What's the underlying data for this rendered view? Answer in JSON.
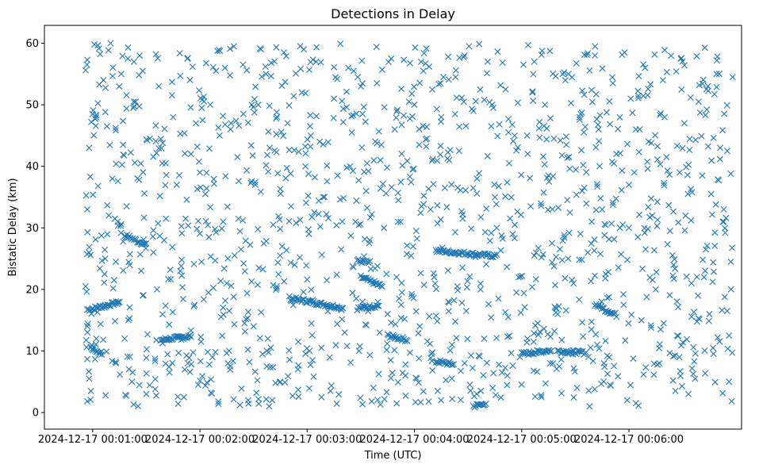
{
  "chart_data": {
    "type": "scatter",
    "title": "Detections in Delay",
    "xlabel": "Time (UTC)",
    "ylabel": "Bistatic Delay (km)",
    "marker": "x",
    "color": "#1f77b4",
    "xlim_seconds": [
      33,
      423
    ],
    "ylim": [
      -2.7,
      62.9
    ],
    "x_ticks": [
      {
        "seconds": 60,
        "label": "2024-12-17 00:01:00"
      },
      {
        "seconds": 120,
        "label": "2024-12-17 00:02:00"
      },
      {
        "seconds": 180,
        "label": "2024-12-17 00:03:00"
      },
      {
        "seconds": 240,
        "label": "2024-12-17 00:04:00"
      },
      {
        "seconds": 300,
        "label": "2024-12-17 00:05:00"
      },
      {
        "seconds": 360,
        "label": "2024-12-17 00:06:00"
      }
    ],
    "y_ticks": [
      {
        "value": 0,
        "label": "0"
      },
      {
        "value": 10,
        "label": "10"
      },
      {
        "value": 20,
        "label": "20"
      },
      {
        "value": 30,
        "label": "30"
      },
      {
        "value": 40,
        "label": "40"
      },
      {
        "value": 50,
        "label": "50"
      },
      {
        "value": 60,
        "label": "60"
      }
    ],
    "series": [
      {
        "name": "Detections",
        "x_range_seconds": [
          56,
          418
        ],
        "y_range": [
          1,
          60
        ],
        "tracks": [
          {
            "t_start": 57,
            "t_end": 75,
            "y_start": 16.7,
            "y_end": 17.9
          },
          {
            "t_start": 59,
            "t_end": 65,
            "y_start": 10.5,
            "y_end": 9.5
          },
          {
            "t_start": 78,
            "t_end": 90,
            "y_start": 28.8,
            "y_end": 27.2
          },
          {
            "t_start": 98,
            "t_end": 115,
            "y_start": 11.8,
            "y_end": 12.4
          },
          {
            "t_start": 170,
            "t_end": 200,
            "y_start": 18.6,
            "y_end": 17.0
          },
          {
            "t_start": 208,
            "t_end": 220,
            "y_start": 16.9,
            "y_end": 17.4
          },
          {
            "t_start": 208,
            "t_end": 215,
            "y_start": 24.7,
            "y_end": 24.3
          },
          {
            "t_start": 210,
            "t_end": 222,
            "y_start": 22.0,
            "y_end": 20.5
          },
          {
            "t_start": 225,
            "t_end": 236,
            "y_start": 12.5,
            "y_end": 11.8
          },
          {
            "t_start": 252,
            "t_end": 286,
            "y_start": 26.3,
            "y_end": 25.4
          },
          {
            "t_start": 252,
            "t_end": 262,
            "y_start": 8.3,
            "y_end": 7.8
          },
          {
            "t_start": 273,
            "t_end": 280,
            "y_start": 1.0,
            "y_end": 1.5
          },
          {
            "t_start": 300,
            "t_end": 316,
            "y_start": 9.5,
            "y_end": 10.1
          },
          {
            "t_start": 320,
            "t_end": 336,
            "y_start": 10.0,
            "y_end": 9.7
          },
          {
            "t_start": 341,
            "t_end": 353,
            "y_start": 17.6,
            "y_end": 15.8
          }
        ],
        "points": [
          [
            57,
            57.3
          ],
          [
            58,
            43.0
          ],
          [
            57,
            33.0
          ],
          [
            58,
            26.0
          ],
          [
            56,
            20.5
          ],
          [
            57,
            14.0
          ],
          [
            58,
            5.5
          ],
          [
            59,
            3.5
          ],
          [
            61,
            59.8
          ],
          [
            62,
            48.3
          ],
          [
            63,
            36.8
          ],
          [
            64,
            23.4
          ],
          [
            62,
            12.0
          ],
          [
            66,
            54.0
          ],
          [
            68,
            46.5
          ],
          [
            67,
            25.0
          ],
          [
            70,
            60.0
          ],
          [
            71,
            38.0
          ],
          [
            72,
            21.5
          ],
          [
            73,
            8.0
          ],
          [
            76,
            55.0
          ],
          [
            77,
            43.5
          ],
          [
            79,
            33.5
          ],
          [
            80,
            15.0
          ],
          [
            82,
            5.0
          ],
          [
            84,
            50.5
          ],
          [
            86,
            37.8
          ],
          [
            88,
            19.0
          ],
          [
            90,
            3.0
          ],
          [
            92,
            44.5
          ],
          [
            94,
            26.0
          ],
          [
            96,
            20.0
          ],
          [
            97,
            53.0
          ],
          [
            99,
            40.5
          ],
          [
            101,
            31.5
          ],
          [
            103,
            6.5
          ],
          [
            105,
            48.0
          ],
          [
            107,
            37.0
          ],
          [
            109,
            23.0
          ],
          [
            111,
            2.5
          ],
          [
            113,
            57.5
          ],
          [
            115,
            42.0
          ],
          [
            117,
            17.5
          ],
          [
            119,
            4.5
          ],
          [
            121,
            49.5
          ],
          [
            123,
            35.5
          ],
          [
            125,
            28.5
          ],
          [
            127,
            9.0
          ],
          [
            129,
            55.5
          ],
          [
            131,
            45.0
          ],
          [
            133,
            31.0
          ],
          [
            135,
            21.0
          ],
          [
            137,
            7.5
          ],
          [
            139,
            59.5
          ],
          [
            141,
            41.5
          ],
          [
            143,
            26.5
          ],
          [
            145,
            14.5
          ],
          [
            147,
            2.0
          ],
          [
            149,
            50.0
          ],
          [
            151,
            37.0
          ],
          [
            153,
            23.5
          ],
          [
            155,
            9.5
          ],
          [
            157,
            55.0
          ],
          [
            159,
            43.0
          ],
          [
            161,
            30.5
          ],
          [
            163,
            20.5
          ],
          [
            165,
            5.0
          ],
          [
            167,
            58.5
          ],
          [
            169,
            47.0
          ],
          [
            171,
            33.5
          ],
          [
            173,
            24.0
          ],
          [
            175,
            11.5
          ],
          [
            177,
            52.0
          ],
          [
            179,
            40.0
          ],
          [
            181,
            29.0
          ],
          [
            183,
            8.5
          ],
          [
            185,
            57.0
          ],
          [
            187,
            44.0
          ],
          [
            189,
            35.0
          ],
          [
            191,
            21.5
          ],
          [
            193,
            3.5
          ],
          [
            195,
            51.0
          ],
          [
            197,
            38.5
          ],
          [
            199,
            26.5
          ],
          [
            201,
            13.0
          ],
          [
            203,
            56.0
          ],
          [
            205,
            45.5
          ],
          [
            207,
            31.0
          ],
          [
            209,
            10.0
          ],
          [
            211,
            48.5
          ],
          [
            213,
            36.0
          ],
          [
            215,
            28.0
          ],
          [
            217,
            4.0
          ],
          [
            219,
            53.5
          ],
          [
            221,
            41.0
          ],
          [
            223,
            30.0
          ],
          [
            225,
            16.0
          ],
          [
            227,
            57.5
          ],
          [
            229,
            46.0
          ],
          [
            231,
            34.5
          ],
          [
            233,
            19.5
          ],
          [
            235,
            6.0
          ],
          [
            237,
            50.5
          ],
          [
            239,
            39.5
          ],
          [
            241,
            29.5
          ],
          [
            243,
            14.0
          ],
          [
            245,
            55.5
          ],
          [
            247,
            44.5
          ],
          [
            249,
            33.0
          ],
          [
            251,
            22.0
          ],
          [
            253,
            3.5
          ],
          [
            255,
            48.0
          ],
          [
            257,
            36.5
          ],
          [
            259,
            18.0
          ],
          [
            261,
            11.0
          ],
          [
            263,
            54.5
          ],
          [
            265,
            42.5
          ],
          [
            267,
            31.5
          ],
          [
            269,
            16.5
          ],
          [
            271,
            4.5
          ],
          [
            273,
            49.0
          ],
          [
            275,
            38.0
          ],
          [
            277,
            20.0
          ],
          [
            279,
            12.0
          ],
          [
            281,
            57.0
          ],
          [
            283,
            46.5
          ],
          [
            285,
            35.0
          ],
          [
            287,
            18.5
          ],
          [
            289,
            6.5
          ],
          [
            291,
            52.5
          ],
          [
            293,
            40.5
          ],
          [
            295,
            29.0
          ],
          [
            297,
            19.5
          ],
          [
            299,
            9.0
          ],
          [
            301,
            56.5
          ],
          [
            303,
            45.0
          ],
          [
            305,
            33.5
          ],
          [
            307,
            25.5
          ],
          [
            309,
            14.5
          ],
          [
            311,
            2.5
          ],
          [
            313,
            50.0
          ],
          [
            315,
            38.5
          ],
          [
            317,
            27.5
          ],
          [
            319,
            17.0
          ],
          [
            321,
            7.5
          ],
          [
            323,
            55.0
          ],
          [
            325,
            43.5
          ],
          [
            327,
            32.5
          ],
          [
            329,
            21.0
          ],
          [
            331,
            4.0
          ],
          [
            333,
            48.5
          ],
          [
            335,
            36.5
          ],
          [
            337,
            26.0
          ],
          [
            339,
            13.5
          ],
          [
            341,
            58.0
          ],
          [
            343,
            46.0
          ],
          [
            345,
            33.0
          ],
          [
            347,
            22.5
          ],
          [
            349,
            9.0
          ],
          [
            351,
            53.5
          ],
          [
            353,
            42.0
          ],
          [
            355,
            30.0
          ],
          [
            357,
            17.5
          ],
          [
            359,
            2.0
          ],
          [
            361,
            51.0
          ],
          [
            363,
            39.0
          ],
          [
            365,
            28.5
          ],
          [
            367,
            15.0
          ],
          [
            369,
            56.0
          ],
          [
            371,
            44.0
          ],
          [
            373,
            32.0
          ],
          [
            375,
            20.0
          ],
          [
            377,
            8.0
          ],
          [
            379,
            54.0
          ],
          [
            381,
            41.5
          ],
          [
            383,
            29.5
          ],
          [
            385,
            24.0
          ],
          [
            387,
            12.5
          ],
          [
            389,
            57.5
          ],
          [
            391,
            47.0
          ],
          [
            393,
            35.5
          ],
          [
            395,
            21.0
          ],
          [
            397,
            5.5
          ],
          [
            399,
            50.5
          ],
          [
            401,
            38.5
          ],
          [
            403,
            26.5
          ],
          [
            405,
            16.0
          ],
          [
            407,
            10.5
          ],
          [
            409,
            55.0
          ],
          [
            411,
            43.0
          ],
          [
            413,
            31.0
          ],
          [
            415,
            16.5
          ],
          [
            416,
            5.0
          ],
          [
            417,
            38.8
          ],
          [
            418,
            54.5
          ],
          [
            417,
            24.5
          ],
          [
            416,
            12.5
          ],
          [
            415,
            42.5
          ],
          [
            100,
            28.0
          ],
          [
            95,
            3.8
          ],
          [
            88,
            55.5
          ],
          [
            150,
            14.0
          ],
          [
            166,
            27.0
          ],
          [
            188,
            2.5
          ],
          [
            204,
            40.0
          ],
          [
            230,
            22.0
          ],
          [
            248,
            1.8
          ],
          [
            268,
            58.0
          ],
          [
            292,
            6.0
          ],
          [
            318,
            44.5
          ],
          [
            338,
            1.0
          ],
          [
            360,
            37.0
          ],
          [
            380,
            48.0
          ],
          [
            402,
            22.0
          ],
          [
            74,
            31.0
          ],
          [
            112,
            31.5
          ],
          [
            134,
            56.0
          ],
          [
            158,
            12.0
          ],
          [
            182,
            45.0
          ],
          [
            206,
            55.5
          ],
          [
            244,
            33.5
          ],
          [
            264,
            20.5
          ],
          [
            286,
            30.0
          ],
          [
            306,
            52.0
          ],
          [
            326,
            25.0
          ],
          [
            346,
            8.0
          ],
          [
            366,
            46.0
          ],
          [
            386,
            3.5
          ],
          [
            406,
            35.5
          ],
          [
            120,
            39.0
          ]
        ]
      }
    ]
  }
}
